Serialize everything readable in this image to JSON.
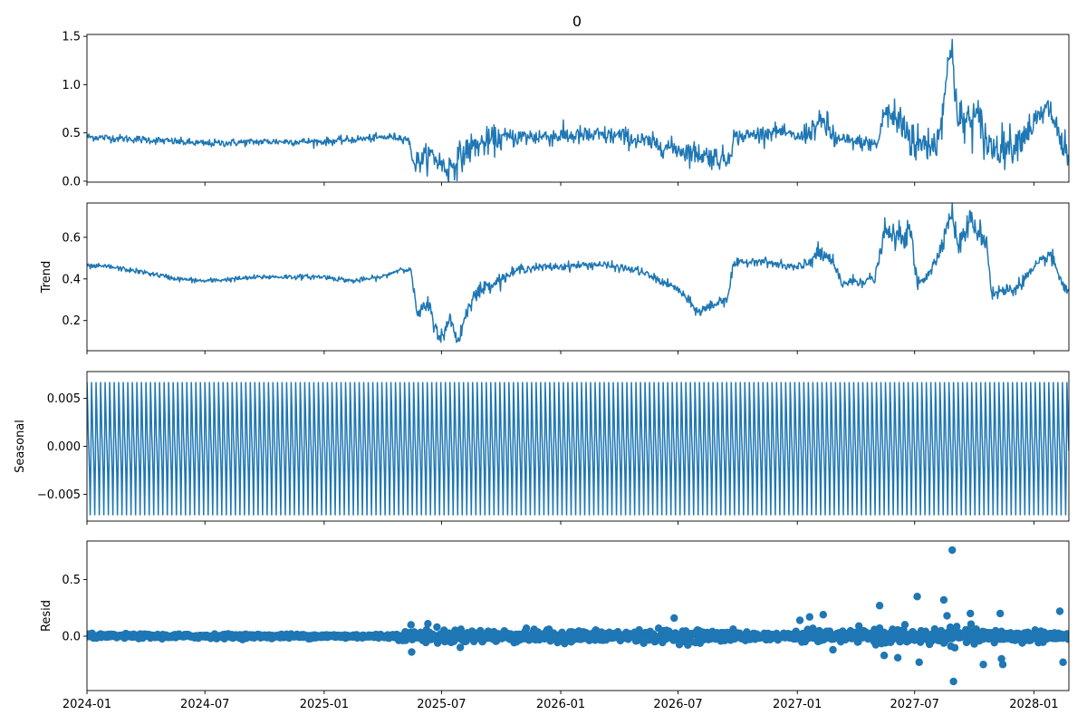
{
  "figure": {
    "title": "0"
  },
  "colors": {
    "series": "#1f77b4",
    "axis": "#000000",
    "background": "#ffffff"
  },
  "x_axis": {
    "ticks": [
      {
        "label": "2024-01",
        "date": "2024-01-01"
      },
      {
        "label": "2024-07",
        "date": "2024-07-01"
      },
      {
        "label": "2025-01",
        "date": "2025-01-01"
      },
      {
        "label": "2025-07",
        "date": "2025-07-01"
      },
      {
        "label": "2026-01",
        "date": "2026-01-01"
      },
      {
        "label": "2026-07",
        "date": "2026-07-01"
      },
      {
        "label": "2027-01",
        "date": "2027-01-01"
      },
      {
        "label": "2027-07",
        "date": "2027-07-01"
      },
      {
        "label": "2028-01",
        "date": "2028-01-01"
      }
    ],
    "range": [
      "2024-01-01",
      "2028-02-24"
    ]
  },
  "chart_data": [
    {
      "type": "line",
      "title": "0",
      "ylabel": "",
      "ylim": [
        -0.01,
        1.52
      ],
      "yticks": [
        {
          "label": "0.0",
          "value": 0.0
        },
        {
          "label": "0.5",
          "value": 0.5
        },
        {
          "label": "1.0",
          "value": 1.0
        },
        {
          "label": "1.5",
          "value": 1.5
        }
      ],
      "x": [
        "2024-01-01",
        "2024-04-01",
        "2024-07-01",
        "2024-10-01",
        "2025-01-01",
        "2025-04-15",
        "2025-05-10",
        "2025-05-20",
        "2025-06-15",
        "2025-07-10",
        "2025-08-15",
        "2025-10-01",
        "2026-01-01",
        "2026-04-01",
        "2026-07-01",
        "2026-09-15",
        "2026-09-25",
        "2026-12-01",
        "2027-01-05",
        "2027-02-10",
        "2027-03-01",
        "2027-05-05",
        "2027-05-15",
        "2027-06-10",
        "2027-07-05",
        "2027-08-05",
        "2027-08-28",
        "2027-09-05",
        "2027-10-05",
        "2027-10-25",
        "2027-12-01",
        "2028-01-25",
        "2028-02-20"
      ],
      "y": [
        0.46,
        0.43,
        0.39,
        0.41,
        0.41,
        0.46,
        0.44,
        0.18,
        0.28,
        0.12,
        0.35,
        0.45,
        0.47,
        0.47,
        0.33,
        0.22,
        0.45,
        0.52,
        0.45,
        0.62,
        0.43,
        0.38,
        0.72,
        0.6,
        0.38,
        0.4,
        1.45,
        0.6,
        0.65,
        0.35,
        0.38,
        0.76,
        0.26
      ],
      "noise": [
        0.02,
        0.02,
        0.02,
        0.02,
        0.02,
        0.02,
        0.03,
        0.06,
        0.07,
        0.08,
        0.07,
        0.05,
        0.05,
        0.05,
        0.06,
        0.06,
        0.04,
        0.03,
        0.06,
        0.08,
        0.04,
        0.05,
        0.12,
        0.12,
        0.1,
        0.1,
        0.12,
        0.12,
        0.12,
        0.1,
        0.08,
        0.1,
        0.1
      ]
    },
    {
      "type": "line",
      "ylabel": "Trend",
      "ylim": [
        0.055,
        0.765
      ],
      "yticks": [
        {
          "label": "0.2",
          "value": 0.2
        },
        {
          "label": "0.4",
          "value": 0.4
        },
        {
          "label": "0.6",
          "value": 0.6
        }
      ],
      "x": [
        "2024-01-01",
        "2024-02-01",
        "2024-04-01",
        "2024-05-20",
        "2024-07-01",
        "2024-10-01",
        "2025-01-01",
        "2025-02-15",
        "2025-04-01",
        "2025-05-01",
        "2025-05-15",
        "2025-05-25",
        "2025-06-10",
        "2025-06-25",
        "2025-07-05",
        "2025-07-15",
        "2025-07-25",
        "2025-08-15",
        "2025-09-05",
        "2025-10-01",
        "2025-11-01",
        "2026-01-01",
        "2026-03-01",
        "2026-05-01",
        "2026-07-01",
        "2026-08-01",
        "2026-09-15",
        "2026-09-25",
        "2026-11-01",
        "2026-12-15",
        "2027-01-05",
        "2027-02-01",
        "2027-02-20",
        "2027-03-10",
        "2027-05-01",
        "2027-05-15",
        "2027-06-05",
        "2027-06-25",
        "2027-07-05",
        "2027-08-01",
        "2027-08-28",
        "2027-09-05",
        "2027-09-25",
        "2027-10-20",
        "2027-10-28",
        "2027-12-01",
        "2028-01-25",
        "2028-02-20"
      ],
      "y": [
        0.46,
        0.46,
        0.43,
        0.4,
        0.39,
        0.41,
        0.41,
        0.39,
        0.41,
        0.45,
        0.44,
        0.22,
        0.28,
        0.14,
        0.12,
        0.23,
        0.09,
        0.3,
        0.36,
        0.4,
        0.45,
        0.46,
        0.47,
        0.44,
        0.35,
        0.24,
        0.31,
        0.47,
        0.49,
        0.46,
        0.45,
        0.52,
        0.5,
        0.38,
        0.4,
        0.62,
        0.6,
        0.62,
        0.37,
        0.47,
        0.73,
        0.55,
        0.68,
        0.58,
        0.33,
        0.35,
        0.52,
        0.34
      ],
      "noise": [
        0.006,
        0.006,
        0.006,
        0.006,
        0.006,
        0.006,
        0.006,
        0.006,
        0.006,
        0.006,
        0.01,
        0.02,
        0.02,
        0.02,
        0.02,
        0.02,
        0.02,
        0.02,
        0.015,
        0.012,
        0.01,
        0.01,
        0.01,
        0.01,
        0.012,
        0.015,
        0.015,
        0.01,
        0.01,
        0.015,
        0.02,
        0.02,
        0.02,
        0.015,
        0.015,
        0.03,
        0.03,
        0.03,
        0.02,
        0.02,
        0.03,
        0.03,
        0.03,
        0.02,
        0.02,
        0.015,
        0.02,
        0.02
      ]
    },
    {
      "type": "line",
      "ylabel": "Seasonal",
      "ylim": [
        -0.0078,
        0.0078
      ],
      "yticks": [
        {
          "label": "−0.005",
          "value": -0.005
        },
        {
          "label": "0.000",
          "value": 0.0
        },
        {
          "label": "0.005",
          "value": 0.005
        }
      ],
      "period_days": 7,
      "cycle": [
        0.0067,
        0.0044,
        0.0012,
        -0.0005,
        -0.0028,
        -0.0072,
        -0.0018
      ]
    },
    {
      "type": "scatter",
      "ylabel": "Resid",
      "ylim": [
        -0.48,
        0.84
      ],
      "yticks": [
        {
          "label": "0.0",
          "value": 0.0
        },
        {
          "label": "0.5",
          "value": 0.5
        }
      ],
      "x": [
        "2024-01-01",
        "2025-04-15",
        "2025-05-15",
        "2025-07-10",
        "2026-01-01",
        "2026-06-20",
        "2026-09-15",
        "2026-12-15",
        "2027-01-10",
        "2027-03-15",
        "2027-05-01",
        "2027-06-15",
        "2027-08-10",
        "2027-09-20",
        "2027-11-15",
        "2028-02-24"
      ],
      "spread": [
        0.015,
        0.015,
        0.04,
        0.05,
        0.04,
        0.045,
        0.04,
        0.02,
        0.05,
        0.035,
        0.05,
        0.06,
        0.06,
        0.055,
        0.045,
        0.04
      ],
      "outliers": [
        {
          "x": "2025-05-16",
          "y": -0.14
        },
        {
          "x": "2025-05-15",
          "y": 0.1
        },
        {
          "x": "2025-06-10",
          "y": 0.11
        },
        {
          "x": "2026-06-25",
          "y": 0.16
        },
        {
          "x": "2027-01-05",
          "y": 0.14
        },
        {
          "x": "2027-01-20",
          "y": 0.17
        },
        {
          "x": "2027-02-10",
          "y": 0.19
        },
        {
          "x": "2027-02-25",
          "y": -0.12
        },
        {
          "x": "2027-05-08",
          "y": 0.27
        },
        {
          "x": "2027-05-15",
          "y": -0.17
        },
        {
          "x": "2027-06-05",
          "y": -0.19
        },
        {
          "x": "2027-07-05",
          "y": 0.35
        },
        {
          "x": "2027-07-08",
          "y": -0.23
        },
        {
          "x": "2027-08-15",
          "y": 0.32
        },
        {
          "x": "2027-08-20",
          "y": 0.18
        },
        {
          "x": "2027-08-28",
          "y": 0.76
        },
        {
          "x": "2027-08-30",
          "y": -0.4
        },
        {
          "x": "2027-09-25",
          "y": 0.2
        },
        {
          "x": "2027-10-15",
          "y": -0.25
        },
        {
          "x": "2027-11-10",
          "y": 0.2
        },
        {
          "x": "2027-11-12",
          "y": -0.2
        },
        {
          "x": "2027-11-14",
          "y": -0.25
        },
        {
          "x": "2028-02-10",
          "y": 0.22
        },
        {
          "x": "2028-02-15",
          "y": -0.23
        }
      ]
    }
  ]
}
